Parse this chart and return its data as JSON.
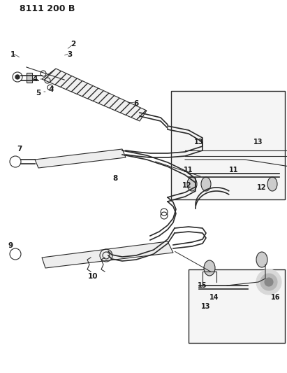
{
  "title": "8111 200 B",
  "bg_color": "#ffffff",
  "line_color": "#2a2a2a",
  "label_color": "#1a1a1a",
  "title_fontsize": 9,
  "label_fontsize": 7.5,
  "fig_width": 4.11,
  "fig_height": 5.33,
  "dpi": 100
}
